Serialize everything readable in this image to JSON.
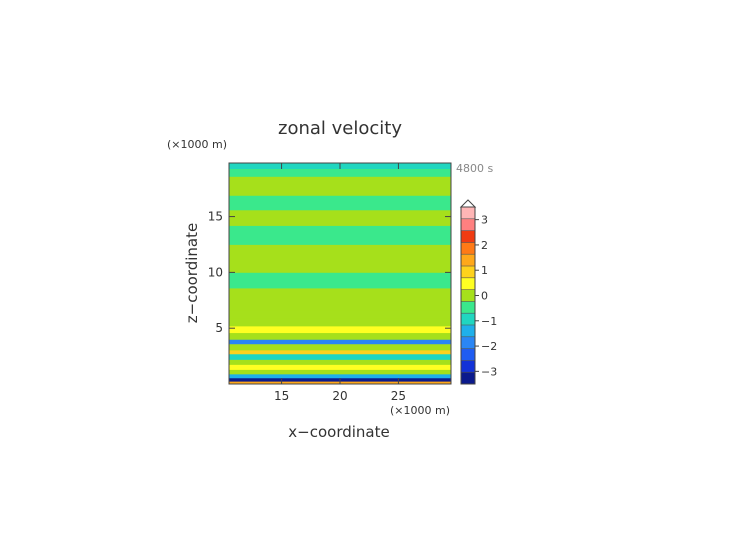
{
  "chart_data": {
    "type": "heatmap",
    "title": "zonal velocity",
    "xlabel": "x−coordinate",
    "ylabel": "z−coordinate",
    "x_unit": "(×1000 m)",
    "y_unit": "(×1000 m)",
    "time_label": "4800 s",
    "xlim": [
      10.5,
      29.5
    ],
    "ylim": [
      0.0,
      19.8
    ],
    "x_ticks": [
      15,
      20,
      25
    ],
    "y_ticks": [
      5,
      10,
      15
    ],
    "colorbar": {
      "levels": [
        -3.5,
        -3,
        -2.5,
        -2,
        -1.5,
        -1,
        -0.5,
        0,
        0.5,
        1,
        1.5,
        2,
        2.5,
        3,
        3.5
      ],
      "colors": [
        "#0b1a8c",
        "#1232d8",
        "#1f5cf2",
        "#2a86f5",
        "#1fb0ea",
        "#20d6c0",
        "#3ae88c",
        "#a6e01b",
        "#ffff22",
        "#ffd21c",
        "#ffa81a",
        "#ff7a16",
        "#f03b12",
        "#ff8080",
        "#ffb6b6"
      ],
      "tick_values": [
        -3,
        -2,
        -1,
        0,
        1,
        2,
        3
      ],
      "tick_labels": [
        "−3",
        "−2",
        "−1",
        "0",
        "1",
        "2",
        "3"
      ],
      "extend": "max"
    },
    "bands": [
      {
        "z0": 0.0,
        "z1": 0.25,
        "value": 1.8
      },
      {
        "z0": 0.25,
        "z1": 0.55,
        "value": -3.2
      },
      {
        "z0": 0.55,
        "z1": 0.9,
        "value": -1.5
      },
      {
        "z0": 0.9,
        "z1": 1.3,
        "value": 0.0
      },
      {
        "z0": 1.3,
        "z1": 1.75,
        "value": 0.7
      },
      {
        "z0": 1.75,
        "z1": 2.2,
        "value": 0.2
      },
      {
        "z0": 2.2,
        "z1": 2.7,
        "value": -0.7
      },
      {
        "z0": 2.7,
        "z1": 3.05,
        "value": 1.4
      },
      {
        "z0": 3.05,
        "z1": 3.6,
        "value": 0.3
      },
      {
        "z0": 3.6,
        "z1": 4.0,
        "value": -2.0
      },
      {
        "z0": 4.0,
        "z1": 4.6,
        "value": 0.2
      },
      {
        "z0": 4.6,
        "z1": 5.2,
        "value": 0.9
      },
      {
        "z0": 5.2,
        "z1": 5.9,
        "value": 0.1
      },
      {
        "z0": 5.9,
        "z1": 6.6,
        "value": 0.35
      },
      {
        "z0": 6.6,
        "z1": 8.6,
        "value": 0.2
      },
      {
        "z0": 8.6,
        "z1": 10.0,
        "value": -0.25
      },
      {
        "z0": 10.0,
        "z1": 12.5,
        "value": 0.2
      },
      {
        "z0": 12.5,
        "z1": 14.2,
        "value": -0.25
      },
      {
        "z0": 14.2,
        "z1": 15.6,
        "value": 0.2
      },
      {
        "z0": 15.6,
        "z1": 16.9,
        "value": -0.25
      },
      {
        "z0": 16.9,
        "z1": 18.6,
        "value": 0.2
      },
      {
        "z0": 18.6,
        "z1": 19.3,
        "value": -0.25
      },
      {
        "z0": 19.3,
        "z1": 19.8,
        "value": -0.6
      }
    ]
  }
}
